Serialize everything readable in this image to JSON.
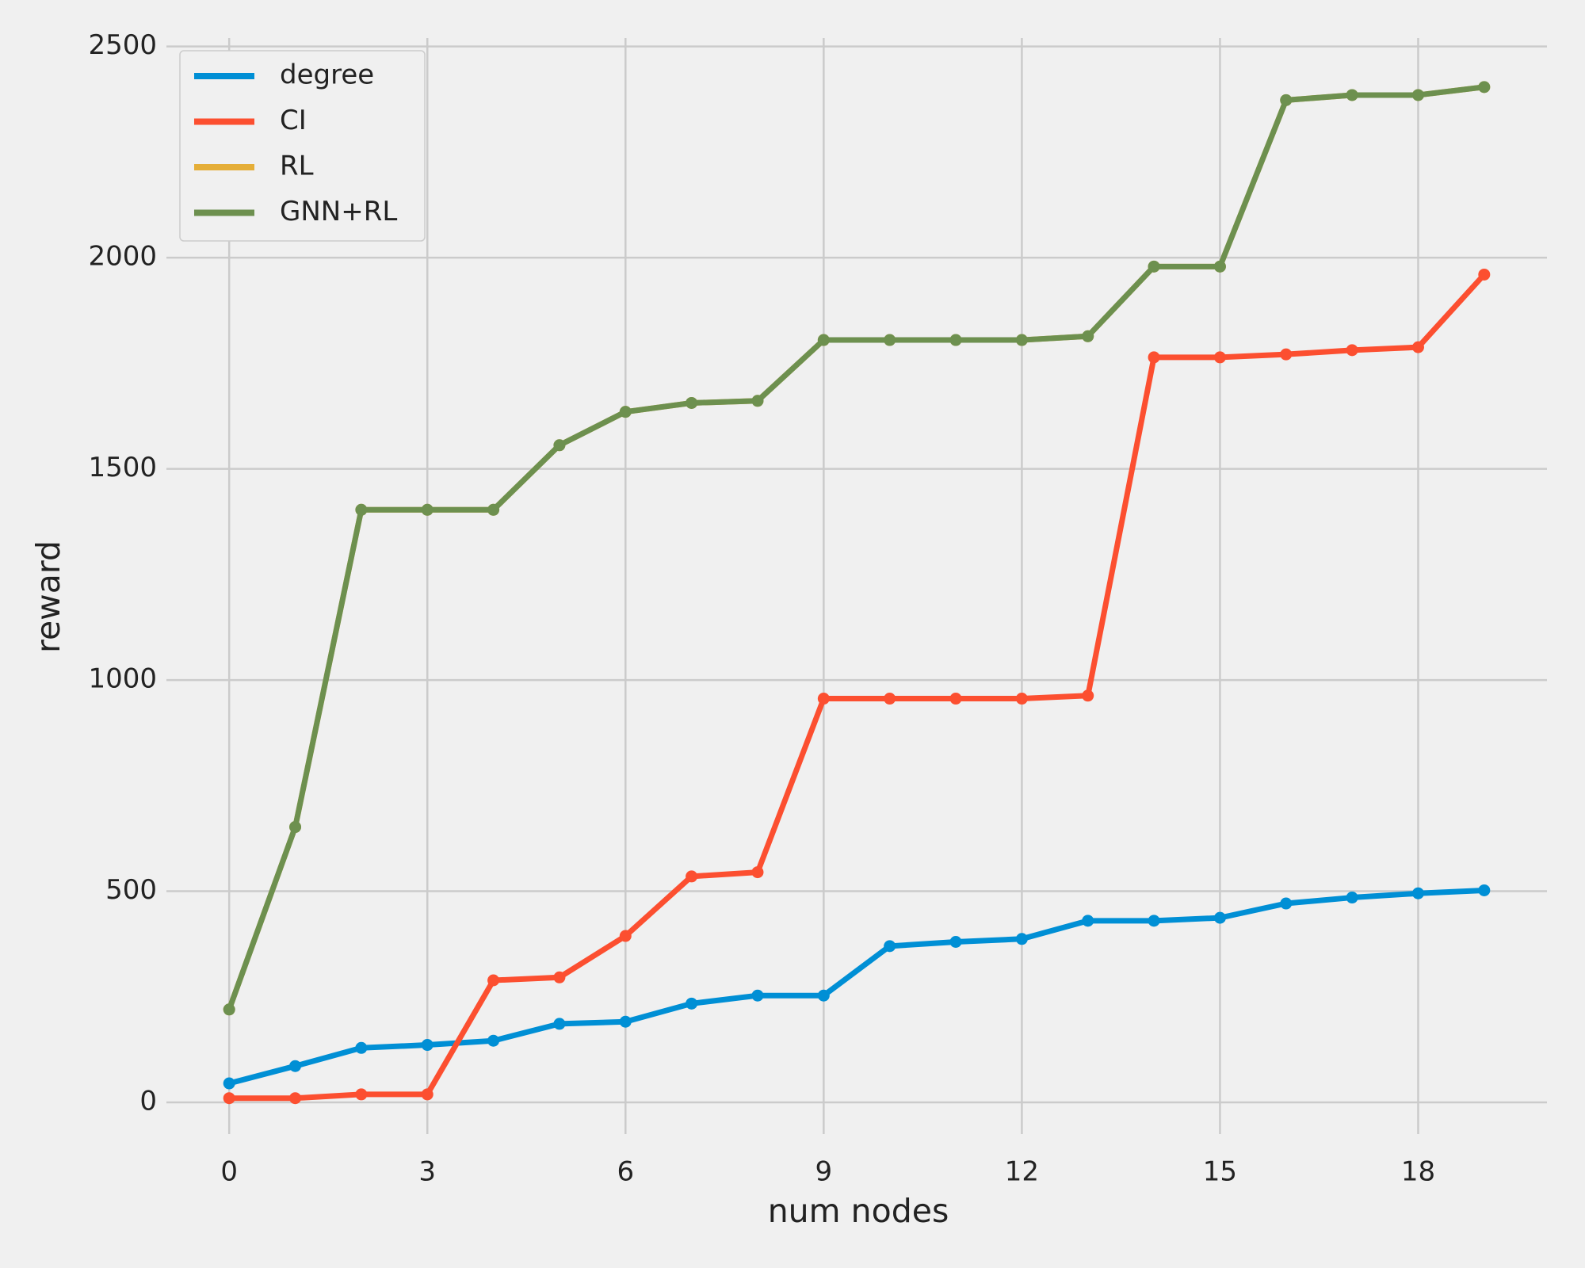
{
  "chart_data": {
    "type": "line",
    "x_label": "num nodes",
    "y_label": "reward",
    "x": [
      0,
      1,
      2,
      3,
      4,
      5,
      6,
      7,
      8,
      9,
      10,
      11,
      12,
      13,
      14,
      15,
      16,
      17,
      18,
      19
    ],
    "series": [
      {
        "name": "degree",
        "color": "#008fd5",
        "values": [
          45,
          86,
          129,
          136,
          146,
          186,
          191,
          234,
          253,
          253,
          370,
          380,
          387,
          430,
          430,
          437,
          471,
          485,
          495,
          502
        ]
      },
      {
        "name": "CI",
        "color": "#fc4f30",
        "values": [
          10,
          10,
          19,
          19,
          289,
          296,
          394,
          535,
          545,
          956,
          956,
          956,
          956,
          963,
          1764,
          1764,
          1771,
          1781,
          1788,
          1960
        ]
      },
      {
        "name": "RL",
        "color": "#e5ae38",
        "values": [
          220,
          652,
          1403,
          1403,
          1403,
          1556,
          1635,
          1656,
          1661,
          1805,
          1805,
          1805,
          1805,
          1814,
          1979,
          1979,
          2373,
          2385,
          2385,
          2404
        ]
      },
      {
        "name": "GNN+RL",
        "color": "#6d904f",
        "values": [
          220,
          652,
          1403,
          1403,
          1403,
          1556,
          1635,
          1656,
          1661,
          1805,
          1805,
          1805,
          1805,
          1814,
          1979,
          1979,
          2373,
          2385,
          2385,
          2404
        ]
      }
    ],
    "xlim": [
      -0.95,
      19.95
    ],
    "ylim": [
      -75,
      2520
    ],
    "xticks": [
      0,
      3,
      6,
      9,
      12,
      15,
      18
    ],
    "yticks": [
      0,
      500,
      1000,
      1500,
      2000,
      2500
    ],
    "grid": true,
    "legend": "upper left",
    "markers": true
  }
}
